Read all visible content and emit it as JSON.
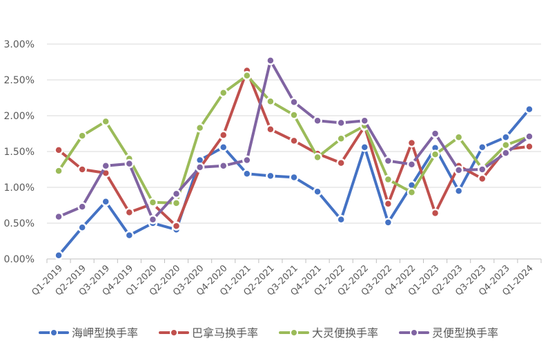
{
  "chart_data": {
    "type": "line",
    "title": "",
    "xlabel": "",
    "ylabel": "",
    "ylim": [
      0,
      3.0
    ],
    "y_ticks": [
      "0.00%",
      "0.50%",
      "1.00%",
      "1.50%",
      "2.00%",
      "2.50%",
      "3.00%"
    ],
    "grid": "horizontal",
    "legend_position": "bottom",
    "categories": [
      "Q1-2019",
      "Q2-2019",
      "Q3-2019",
      "Q4-2019",
      "Q1-2020",
      "Q2-2020",
      "Q3-2020",
      "Q4-2020",
      "Q1-2021",
      "Q2-2021",
      "Q3-2021",
      "Q4-2021",
      "Q1-2022",
      "Q2-2022",
      "Q3-2022",
      "Q4-2022",
      "Q1-2023",
      "Q2-2023",
      "Q3-2023",
      "Q4-2023",
      "Q1-2024"
    ],
    "series": [
      {
        "name": "海岬型换手率",
        "color": "#4472C4",
        "values": [
          0.05,
          0.44,
          0.8,
          0.33,
          0.5,
          0.41,
          1.38,
          1.56,
          1.19,
          1.16,
          1.14,
          0.94,
          0.55,
          1.56,
          0.51,
          1.03,
          1.55,
          0.95,
          1.56,
          1.7,
          2.09
        ]
      },
      {
        "name": "巴拿马换手率",
        "color": "#C0504D",
        "values": [
          1.52,
          1.25,
          1.2,
          0.65,
          0.77,
          0.46,
          1.27,
          1.73,
          2.63,
          1.81,
          1.65,
          1.47,
          1.34,
          1.85,
          0.77,
          1.62,
          0.64,
          1.3,
          1.12,
          1.53,
          1.57
        ]
      },
      {
        "name": "大灵便换手率",
        "color": "#9BBB59",
        "values": [
          1.23,
          1.72,
          1.92,
          1.4,
          0.79,
          0.78,
          1.83,
          2.32,
          2.56,
          2.2,
          2.01,
          1.42,
          1.68,
          1.86,
          1.11,
          0.93,
          1.46,
          1.7,
          1.26,
          1.59,
          1.71
        ]
      },
      {
        "name": "灵便型换手率",
        "color": "#8064A2",
        "values": [
          0.59,
          0.73,
          1.3,
          1.33,
          0.55,
          0.91,
          1.28,
          1.3,
          1.38,
          2.77,
          2.19,
          1.93,
          1.9,
          1.93,
          1.37,
          1.32,
          1.75,
          1.24,
          1.25,
          1.48,
          1.71
        ]
      }
    ]
  }
}
